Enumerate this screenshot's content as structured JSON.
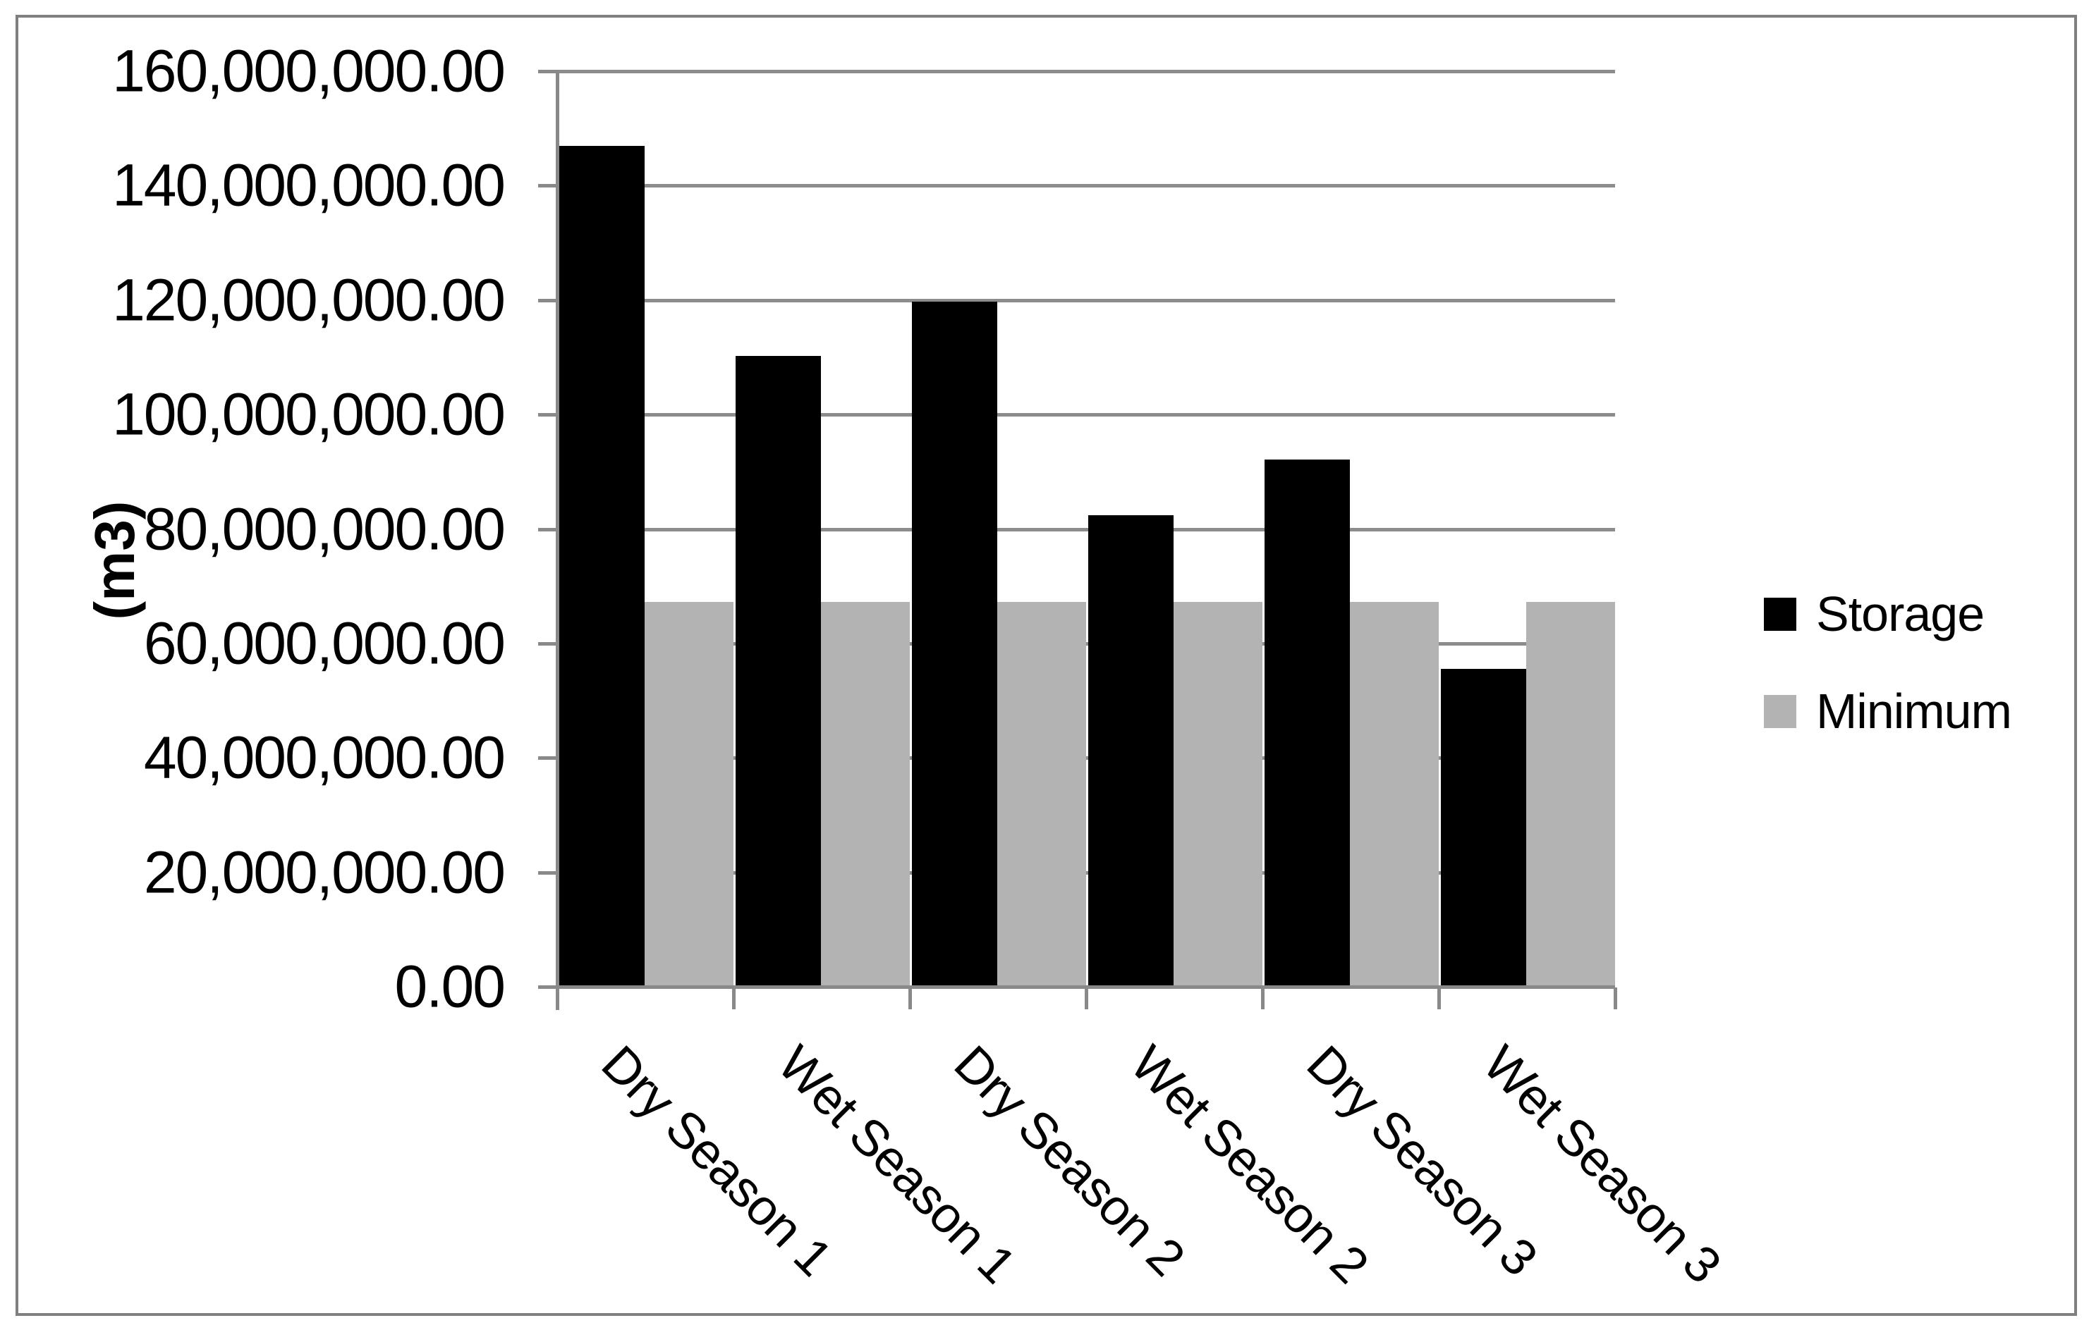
{
  "figure": {
    "background": "#ffffff",
    "border_color": "#7f7f7f"
  },
  "axis_style": {
    "line_color": "#898989",
    "gridline_color": "#8c8c8c",
    "tick_color": "#898989",
    "text_color": "#000000"
  },
  "chart_data": {
    "type": "bar",
    "title": "",
    "xlabel": "",
    "ylabel": "(m3)",
    "categories": [
      "Dry Season 1",
      "Wet Season 1",
      "Dry Season 2",
      "Wet Season 2",
      "Dry Season 3",
      "Wet Season 3"
    ],
    "series": [
      {
        "name": "Storage",
        "color": "#000000",
        "values": [
          147000000,
          110200000,
          119700000,
          82400000,
          92100000,
          55500000
        ]
      },
      {
        "name": "Minimum",
        "color": "#b3b3b3",
        "values": [
          67200000,
          67200000,
          67200000,
          67200000,
          67200000,
          67200000
        ]
      }
    ],
    "ylim": [
      0,
      160000000
    ],
    "y_tick_step": 20000000,
    "y_tick_labels": [
      "160,000,000.00",
      "140,000,000.00",
      "120,000,000.00",
      "100,000,000.00",
      "80,000,000.00",
      "60,000,000.00",
      "40,000,000.00",
      "20,000,000.00",
      "0.00"
    ],
    "grid": "horizontal",
    "legend_position": "right",
    "x_label_rotation_deg": 45
  },
  "legend": {
    "items": [
      {
        "label": "Storage",
        "color": "#000000"
      },
      {
        "label": "Minimum",
        "color": "#b3b3b3"
      }
    ]
  }
}
